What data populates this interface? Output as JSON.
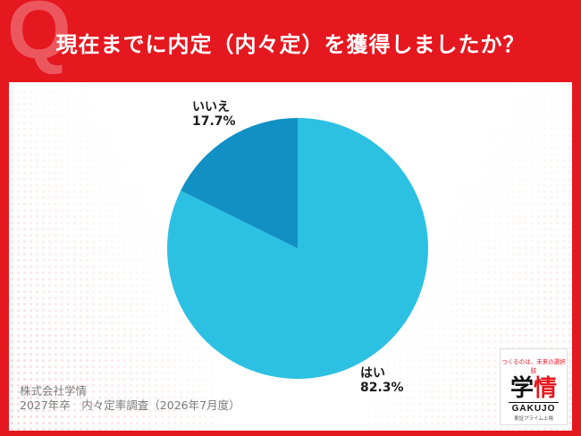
{
  "header": {
    "q_letter": "Q",
    "title": "現在までに内定（内々定）を獲得しましたか？"
  },
  "chart_data": {
    "type": "pie",
    "title": "現在までに内定（内々定）を獲得しましたか？",
    "slices": [
      {
        "label": "はい",
        "value": 82.3,
        "value_text": "82.3%",
        "color": "#2cc1e2"
      },
      {
        "label": "いいえ",
        "value": 17.7,
        "value_text": "17.7%",
        "color": "#1190c4"
      }
    ],
    "legend": "none"
  },
  "source": {
    "line1": "株式会社学情",
    "line2": "2027年卒　内々定率調査（2026年7月度）"
  },
  "logo": {
    "tagline": "つくるのは、未来の選択肢",
    "name_part1": "学",
    "name_part2": "情",
    "name_en": "GAKUJO",
    "sub": "東証プライム上場"
  }
}
